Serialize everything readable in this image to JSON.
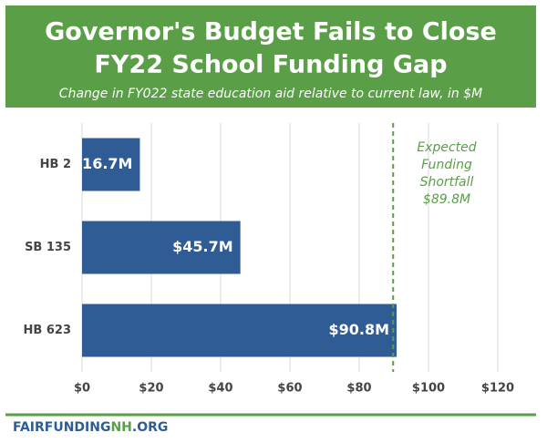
{
  "chart_data": {
    "type": "hbar",
    "title_lines": [
      "Governor's Budget Fails to Close",
      "FY22 School Funding Gap"
    ],
    "subtitle": "Change in FY022 state education aid relative to current law, in $M",
    "categories": [
      "HB 2",
      "SB 135",
      "HB 623"
    ],
    "values": [
      16.7,
      45.7,
      90.8
    ],
    "value_labels": [
      "$16.7M",
      "$45.7M",
      "$90.8M"
    ],
    "color": "#2f5c94",
    "xlim": [
      0,
      130
    ],
    "xticks": [
      {
        "value": 0,
        "label": "$0"
      },
      {
        "value": 20,
        "label": "$20"
      },
      {
        "value": 40,
        "label": "$40"
      },
      {
        "value": 60,
        "label": "$60"
      },
      {
        "value": 80,
        "label": "$80"
      },
      {
        "value": 100,
        "label": "$100"
      },
      {
        "value": 120,
        "label": "$120"
      }
    ],
    "grid": true,
    "reference_line": {
      "value": 89.8,
      "color": "#5a9e47",
      "label_lines": [
        "Expected",
        "Funding",
        "Shortfall",
        "$89.8M"
      ]
    },
    "footer_parts": [
      "FAIRFUNDING",
      "NH",
      ".ORG"
    ]
  }
}
